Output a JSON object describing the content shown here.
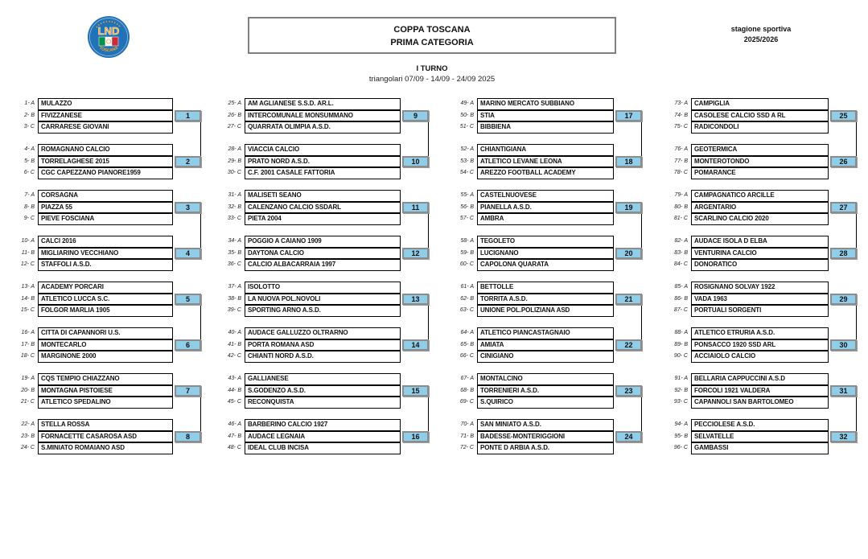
{
  "header": {
    "title_line1": "COPPA TOSCANA",
    "title_line2": "PRIMA CATEGORIA",
    "season_label": "stagione sportiva",
    "season_value": "2025/2026",
    "logo_text": "LND",
    "logo_subtext": "TOSCANA"
  },
  "round": {
    "title": "I TURNO",
    "subtitle": "triangolari 07/09 - 14/09 - 24/09 2025"
  },
  "colors": {
    "badge_bg": "#8fcde8",
    "badge_border": "#8c8c8c",
    "box_border": "#000000",
    "title_border": "#7f7f7f",
    "logo_blue": "#2272b8",
    "logo_orange": "#f5a623",
    "flag_green": "#009246",
    "flag_red": "#ce2b37"
  },
  "groups": [
    {
      "num": "1",
      "teams": [
        {
          "s": "1- A",
          "n": "MULAZZO"
        },
        {
          "s": "2- B",
          "n": "FIVIZZANESE"
        },
        {
          "s": "3- C",
          "n": "CARRARESE GIOVANI"
        }
      ]
    },
    {
      "num": "2",
      "teams": [
        {
          "s": "4- A",
          "n": "ROMAGNANO CALCIO"
        },
        {
          "s": "5- B",
          "n": "TORRELAGHESE 2015"
        },
        {
          "s": "6- C",
          "n": "CGC CAPEZZANO PIANORE1959"
        }
      ]
    },
    {
      "num": "3",
      "teams": [
        {
          "s": "7- A",
          "n": "CORSAGNA"
        },
        {
          "s": "8- B",
          "n": "PIAZZA 55"
        },
        {
          "s": "9- C",
          "n": "PIEVE FOSCIANA"
        }
      ]
    },
    {
      "num": "4",
      "teams": [
        {
          "s": "10- A",
          "n": "CALCI 2016"
        },
        {
          "s": "11- B",
          "n": "MIGLIARINO VECCHIANO"
        },
        {
          "s": "12- C",
          "n": "STAFFOLI A.S.D."
        }
      ]
    },
    {
      "num": "5",
      "teams": [
        {
          "s": "13- A",
          "n": "ACADEMY PORCARI"
        },
        {
          "s": "14- B",
          "n": "ATLETICO LUCCA S.C."
        },
        {
          "s": "15- C",
          "n": "FOLGOR MARLIA 1905"
        }
      ]
    },
    {
      "num": "6",
      "teams": [
        {
          "s": "16- A",
          "n": "CITTA DI CAPANNORI U.S."
        },
        {
          "s": "17- B",
          "n": "MONTECARLO"
        },
        {
          "s": "18- C",
          "n": "MARGINONE 2000"
        }
      ]
    },
    {
      "num": "7",
      "teams": [
        {
          "s": "19- A",
          "n": "CQS TEMPIO CHIAZZANO"
        },
        {
          "s": "20- B",
          "n": "MONTAGNA PISTOIESE"
        },
        {
          "s": "21- C",
          "n": "ATLETICO SPEDALINO"
        }
      ]
    },
    {
      "num": "8",
      "teams": [
        {
          "s": "22- A",
          "n": "STELLA ROSSA"
        },
        {
          "s": "23- B",
          "n": "FORNACETTE CASAROSA ASD"
        },
        {
          "s": "24- C",
          "n": "S.MINIATO ROMAIANO ASD"
        }
      ]
    },
    {
      "num": "9",
      "teams": [
        {
          "s": "25- A",
          "n": "AM AGLIANESE S.S.D. AR.L."
        },
        {
          "s": "26- B",
          "n": "INTERCOMUNALE MONSUMMANO"
        },
        {
          "s": "27- C",
          "n": "QUARRATA OLIMPIA A.S.D."
        }
      ]
    },
    {
      "num": "10",
      "teams": [
        {
          "s": "28- A",
          "n": "VIACCIA CALCIO"
        },
        {
          "s": "29- B",
          "n": "PRATO NORD A.S.D."
        },
        {
          "s": "30- C",
          "n": "C.F. 2001 CASALE FATTORIA"
        }
      ]
    },
    {
      "num": "11",
      "teams": [
        {
          "s": "31- A",
          "n": "MALISETI SEANO"
        },
        {
          "s": "32- B",
          "n": "CALENZANO CALCIO SSDARL"
        },
        {
          "s": "33- C",
          "n": "PIETA 2004"
        }
      ]
    },
    {
      "num": "12",
      "teams": [
        {
          "s": "34- A",
          "n": "POGGIO A CAIANO 1909"
        },
        {
          "s": "35- B",
          "n": "DAYTONA CALCIO"
        },
        {
          "s": "36- C",
          "n": "CALCIO ALBACARRAIA 1997"
        }
      ]
    },
    {
      "num": "13",
      "teams": [
        {
          "s": "37- A",
          "n": "ISOLOTTO"
        },
        {
          "s": "38- B",
          "n": "LA NUOVA POL.NOVOLI"
        },
        {
          "s": "39- C",
          "n": "SPORTING ARNO A.S.D."
        }
      ]
    },
    {
      "num": "14",
      "teams": [
        {
          "s": "40- A",
          "n": "AUDACE GALLUZZO OLTRARNO"
        },
        {
          "s": "41- B",
          "n": "PORTA ROMANA ASD"
        },
        {
          "s": "42- C",
          "n": "CHIANTI NORD A.S.D."
        }
      ]
    },
    {
      "num": "15",
      "teams": [
        {
          "s": "43- A",
          "n": "GALLIANESE"
        },
        {
          "s": "44- B",
          "n": "S.GODENZO A.S.D."
        },
        {
          "s": "45- C",
          "n": "RECONQUISTA"
        }
      ]
    },
    {
      "num": "16",
      "teams": [
        {
          "s": "46- A",
          "n": "BARBERINO CALCIO 1927"
        },
        {
          "s": "47- B",
          "n": "AUDACE LEGNAIA"
        },
        {
          "s": "48- C",
          "n": "IDEAL CLUB INCISA"
        }
      ]
    },
    {
      "num": "17",
      "teams": [
        {
          "s": "49- A",
          "n": "MARINO MERCATO SUBBIANO"
        },
        {
          "s": "50- B",
          "n": "STIA"
        },
        {
          "s": "51- C",
          "n": "BIBBIENA"
        }
      ]
    },
    {
      "num": "18",
      "teams": [
        {
          "s": "52- A",
          "n": "CHIANTIGIANA"
        },
        {
          "s": "53- B",
          "n": "ATLETICO LEVANE LEONA"
        },
        {
          "s": "54- C",
          "n": "AREZZO FOOTBALL ACADEMY"
        }
      ]
    },
    {
      "num": "19",
      "teams": [
        {
          "s": "55- A",
          "n": "CASTELNUOVESE"
        },
        {
          "s": "56- B",
          "n": "PIANELLA A.S.D."
        },
        {
          "s": "57- C",
          "n": "AMBRA"
        }
      ]
    },
    {
      "num": "20",
      "teams": [
        {
          "s": "58- A",
          "n": "TEGOLETO"
        },
        {
          "s": "59- B",
          "n": "LUCIGNANO"
        },
        {
          "s": "60- C",
          "n": "CAPOLONA QUARATA"
        }
      ]
    },
    {
      "num": "21",
      "teams": [
        {
          "s": "61- A",
          "n": "BETTOLLE"
        },
        {
          "s": "62- B",
          "n": "TORRITA A.S.D."
        },
        {
          "s": "63- C",
          "n": "UNIONE POL.POLIZIANA ASD"
        }
      ]
    },
    {
      "num": "22",
      "teams": [
        {
          "s": "64- A",
          "n": "ATLETICO PIANCASTAGNAIO"
        },
        {
          "s": "65- B",
          "n": "AMIATA"
        },
        {
          "s": "66- C",
          "n": "CINIGIANO"
        }
      ]
    },
    {
      "num": "23",
      "teams": [
        {
          "s": "67- A",
          "n": "MONTALCINO"
        },
        {
          "s": "68- B",
          "n": "TORRENIERI A.S.D."
        },
        {
          "s": "69- C",
          "n": "S.QUIRICO"
        }
      ]
    },
    {
      "num": "24",
      "teams": [
        {
          "s": "70- A",
          "n": "SAN MINIATO A.S.D."
        },
        {
          "s": "71- B",
          "n": "BADESSE-MONTERIGGIONI"
        },
        {
          "s": "72- C",
          "n": "PONTE D ARBIA A.S.D."
        }
      ]
    },
    {
      "num": "25",
      "teams": [
        {
          "s": "73- A",
          "n": "CAMPIGLIA"
        },
        {
          "s": "74- B",
          "n": "CASOLESE CALCIO SSD A RL"
        },
        {
          "s": "75- C",
          "n": "RADICONDOLI"
        }
      ]
    },
    {
      "num": "26",
      "teams": [
        {
          "s": "76- A",
          "n": "GEOTERMICA"
        },
        {
          "s": "77- B",
          "n": "MONTEROTONDO"
        },
        {
          "s": "78- C",
          "n": "POMARANCE"
        }
      ]
    },
    {
      "num": "27",
      "teams": [
        {
          "s": "79- A",
          "n": "CAMPAGNATICO ARCILLE"
        },
        {
          "s": "80- B",
          "n": "ARGENTARIO"
        },
        {
          "s": "81- C",
          "n": "SCARLINO CALCIO 2020"
        }
      ]
    },
    {
      "num": "28",
      "teams": [
        {
          "s": "82- A",
          "n": "AUDACE ISOLA D ELBA"
        },
        {
          "s": "83- B",
          "n": "VENTURINA CALCIO"
        },
        {
          "s": "84- C",
          "n": "DONORATICO"
        }
      ]
    },
    {
      "num": "29",
      "teams": [
        {
          "s": "85- A",
          "n": "ROSIGNANO SOLVAY 1922"
        },
        {
          "s": "86- B",
          "n": "VADA 1963"
        },
        {
          "s": "87- C",
          "n": "PORTUALI SORGENTI"
        }
      ]
    },
    {
      "num": "30",
      "teams": [
        {
          "s": "88- A",
          "n": "ATLETICO ETRURIA A.S.D."
        },
        {
          "s": "89- B",
          "n": "PONSACCO 1920 SSD ARL"
        },
        {
          "s": "90- C",
          "n": "ACCIAIOLO CALCIO"
        }
      ]
    },
    {
      "num": "31",
      "teams": [
        {
          "s": "91- A",
          "n": "BELLARIA CAPPUCCINI A.S.D"
        },
        {
          "s": "92- B",
          "n": "FORCOLI 1921 VALDERA"
        },
        {
          "s": "93- C",
          "n": "CAPANNOLI SAN BARTOLOMEO"
        }
      ]
    },
    {
      "num": "32",
      "teams": [
        {
          "s": "94- A",
          "n": "PECCIOLESE A.S.D."
        },
        {
          "s": "95- B",
          "n": "SELVATELLE"
        },
        {
          "s": "96- C",
          "n": "GAMBASSI"
        }
      ]
    }
  ]
}
